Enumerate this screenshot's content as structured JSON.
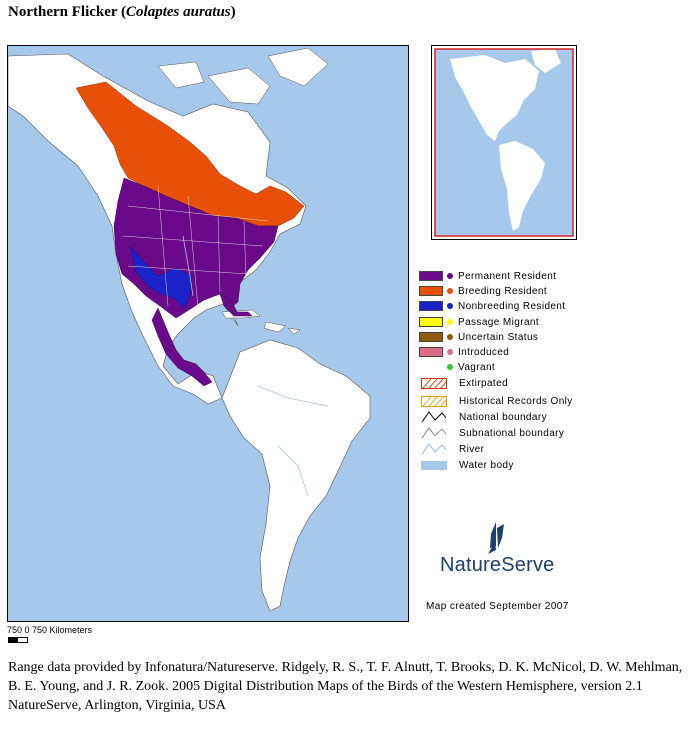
{
  "title": {
    "common_name": "Northern Flicker",
    "scientific_name": "Colaptes auratus"
  },
  "colors": {
    "water": "#a6c8ea",
    "land": "#ffffff",
    "permanent_resident": "#6a0a8a",
    "breeding_resident": "#e8500a",
    "nonbreeding_resident": "#1a22c8",
    "passage_migrant": "#ffff00",
    "uncertain_status": "#8b5a0a",
    "introduced": "#e06a8a",
    "vagrant": "#33cc33",
    "inset_frame": "#dd2222"
  },
  "legend": {
    "items": [
      {
        "label": "Permanent Resident",
        "color": "#6a0a8a"
      },
      {
        "label": "Breeding Resident",
        "color": "#e8500a"
      },
      {
        "label": "Nonbreeding Resident",
        "color": "#1a22c8"
      },
      {
        "label": "Passage Migrant",
        "color": "#ffff00"
      },
      {
        "label": "Uncertain Status",
        "color": "#8b5a0a"
      },
      {
        "label": "Introduced",
        "color": "#e06a8a"
      },
      {
        "label": "Vagrant",
        "color": "#33cc33"
      }
    ],
    "extirpated": "Extirpated",
    "historical": "Historical Records Only",
    "national_boundary": "National boundary",
    "subnational_boundary": "Subnational boundary",
    "river": "River",
    "water_body": "Water body"
  },
  "logo": {
    "text": "NatureServe"
  },
  "map_created": "Map created September 2007",
  "scale": {
    "text": "750 0 750   Kilometers"
  },
  "credit": "Range data provided by Infonatura/Natureserve. Ridgely, R. S., T. F. Alnutt, T. Brooks, D. K. McNicol, D. W. Mehlman, B. E. Young, and J. R. Zook. 2005 Digital Distribution Maps of the Birds of the Western Hemisphere, version 2.1 NatureServe, Arlington, Virginia, USA"
}
